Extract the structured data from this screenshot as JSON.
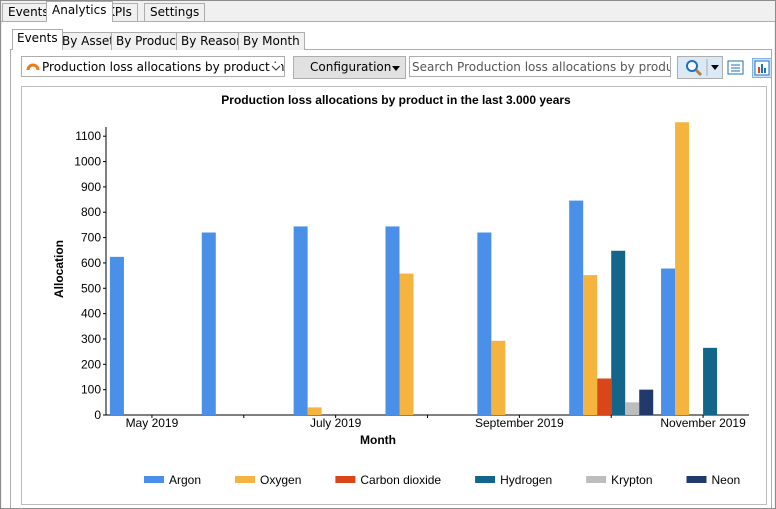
{
  "tabs": [
    "Events",
    "Analytics",
    "KPIs",
    "Settings"
  ],
  "subtabs": [
    "Events",
    "By Asset",
    "By Product",
    "By Reason",
    "By Month"
  ],
  "toolbar": {
    "report": "Production loss allocations by product in the las",
    "configuration": "Configuration",
    "search": "Search Production loss allocations by product in the las"
  },
  "chart_data": {
    "type": "bar",
    "title": "Production loss allocations by product in the last 3.000 years",
    "x_label": "Month",
    "y_label": "Allocation",
    "categories": [
      "May 2019",
      null,
      "July 2019",
      null,
      "September 2019",
      null,
      "November 2019"
    ],
    "series": [
      {
        "name": "Argon",
        "color": "#4a8fe8",
        "values": [
          624,
          720,
          744,
          744,
          720,
          846,
          578
        ],
        "value_labels": [
          "624.00",
          "720.00",
          "744.00",
          "744.00",
          "720.00",
          "846.00",
          "578.00"
        ]
      },
      {
        "name": "Oxygen",
        "color": "#f5b340",
        "values": [
          null,
          null,
          30,
          558,
          292.69,
          552,
          1155
        ],
        "value_labels": [
          null,
          null,
          null,
          "558.00",
          "292.69",
          "552.00",
          "1155.00"
        ]
      },
      {
        "name": "Carbon dioxide",
        "color": "#d9461a",
        "values": [
          null,
          null,
          null,
          null,
          null,
          144,
          null
        ],
        "value_labels": [
          null,
          null,
          null,
          null,
          null,
          "144.00",
          null
        ]
      },
      {
        "name": "Hydrogen",
        "color": "#13668a",
        "values": [
          null,
          null,
          null,
          null,
          null,
          648,
          265
        ],
        "value_labels": [
          null,
          null,
          null,
          null,
          null,
          "648.00",
          "265.00"
        ]
      },
      {
        "name": "Krypton",
        "color": "#bdbdbd",
        "values": [
          null,
          null,
          null,
          null,
          null,
          50,
          null
        ],
        "value_labels": [
          null,
          null,
          null,
          null,
          null,
          "50.00",
          null
        ]
      },
      {
        "name": "Neon",
        "color": "#1f3a6b",
        "values": [
          null,
          null,
          null,
          null,
          null,
          100,
          null
        ],
        "value_labels": [
          null,
          null,
          null,
          null,
          null,
          "100.00",
          null
        ]
      }
    ],
    "ylim": [
      0,
      1160
    ],
    "yticks": [
      0,
      100,
      200,
      300,
      400,
      500,
      600,
      700,
      800,
      900,
      1000,
      1100
    ],
    "grid": false,
    "legend": "bottom"
  }
}
